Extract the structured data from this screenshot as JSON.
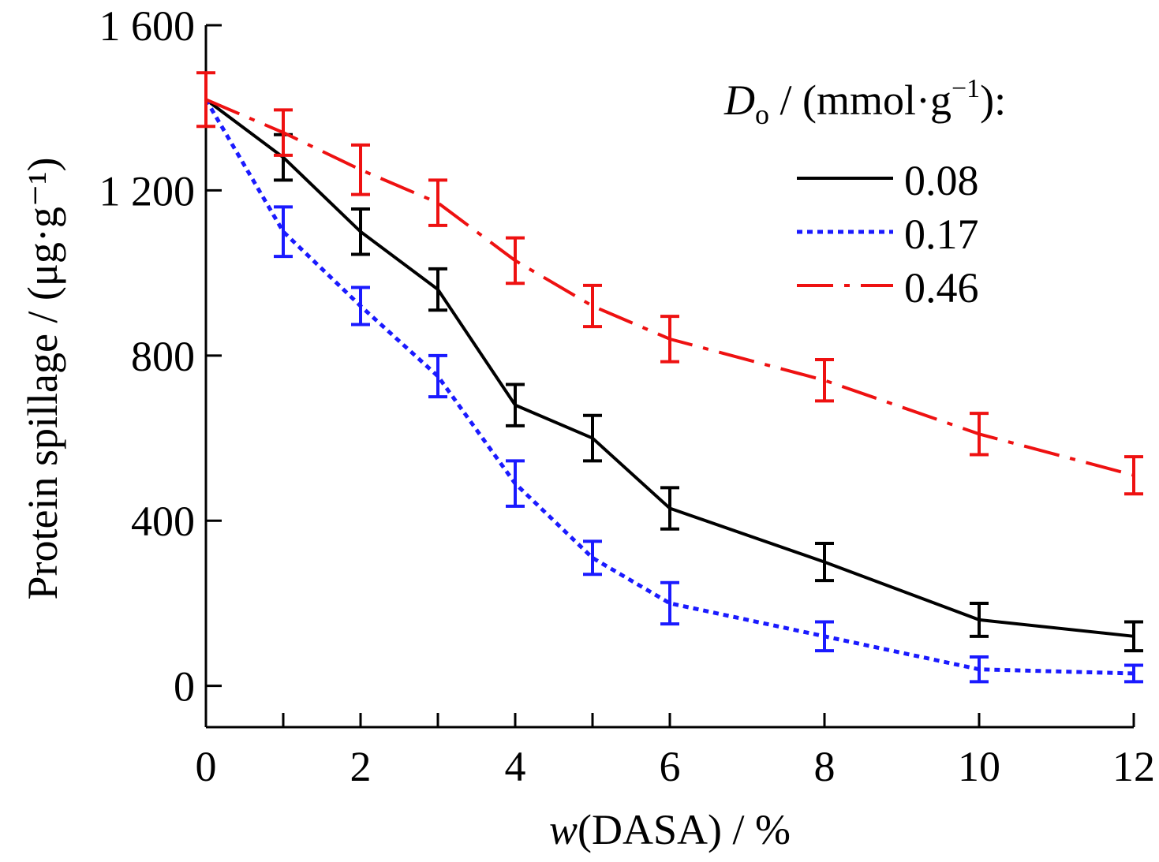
{
  "chart_data": {
    "type": "line",
    "x": [
      0,
      1,
      2,
      3,
      4,
      5,
      6,
      8,
      10,
      12
    ],
    "xlabel": {
      "var": "w",
      "rest": "(DASA) / %"
    },
    "ylabel": "Protein spillage / (μg·g⁻¹)",
    "xlim": [
      0,
      12
    ],
    "ylim": [
      -100,
      1600
    ],
    "xticks": [
      0,
      2,
      4,
      6,
      8,
      10,
      12
    ],
    "xtick_labels": [
      "0",
      "2",
      "4",
      "6",
      "8",
      "10",
      "12"
    ],
    "yticks": [
      0,
      400,
      800,
      1200,
      1600
    ],
    "ytick_labels": [
      "0",
      "400",
      "800",
      "1 200",
      "1 600"
    ],
    "grid": false,
    "legend": {
      "placement": "top-right",
      "title_var": "D",
      "title_sub": "o",
      "title_rest": " / (mmol·g",
      "title_sup": "−1",
      "title_end": "):"
    },
    "series": [
      {
        "name": "0.08",
        "color": "#000000",
        "style": "solid",
        "values": [
          1420,
          1280,
          1100,
          960,
          680,
          600,
          430,
          300,
          160,
          120
        ],
        "errors": [
          0,
          55,
          55,
          50,
          50,
          55,
          50,
          45,
          40,
          35
        ]
      },
      {
        "name": "0.17",
        "color": "#1a1aff",
        "style": "dotted",
        "values": [
          1420,
          1100,
          920,
          750,
          490,
          310,
          200,
          120,
          40,
          30
        ],
        "errors": [
          0,
          60,
          45,
          50,
          55,
          40,
          50,
          35,
          30,
          20
        ]
      },
      {
        "name": "0.46",
        "color": "#ee1111",
        "style": "dashdot",
        "values": [
          1420,
          1340,
          1250,
          1170,
          1030,
          920,
          840,
          740,
          610,
          510
        ],
        "errors": [
          65,
          55,
          60,
          55,
          55,
          50,
          55,
          50,
          50,
          45
        ]
      }
    ]
  }
}
